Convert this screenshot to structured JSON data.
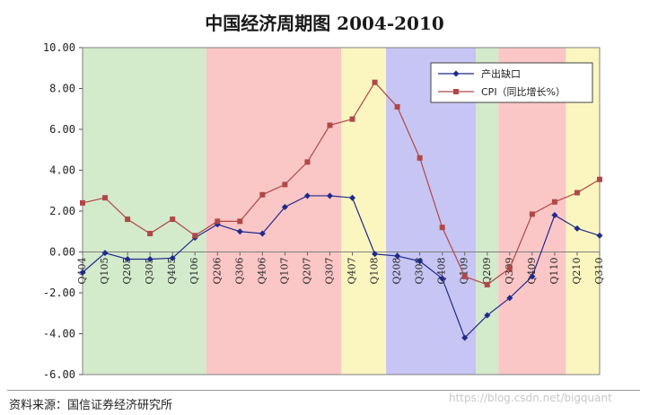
{
  "page": {
    "title": "中国经济周期图 2004-2010",
    "source": "资料来源：国信证券经济研究所",
    "watermark": "https://blog.csdn.net/bigquant"
  },
  "chart_data": {
    "type": "line",
    "title": "中国经济周期图 2004-2010",
    "xlabel": "",
    "ylabel": "",
    "ylim": [
      -6,
      10
    ],
    "yticks": [
      "10.00",
      "8.00",
      "6.00",
      "4.00",
      "2.00",
      "0.00",
      "-2.00",
      "-4.00",
      "-6.00"
    ],
    "categories": [
      "Q404",
      "Q105",
      "Q205",
      "Q305",
      "Q405",
      "Q106",
      "Q206",
      "Q306",
      "Q406",
      "Q107",
      "Q207",
      "Q307",
      "Q407",
      "Q108",
      "Q208",
      "Q308",
      "Q408",
      "Q109",
      "Q209",
      "Q309",
      "Q409",
      "Q110",
      "Q210",
      "Q310"
    ],
    "series": [
      {
        "name": "产出缺口",
        "color": "#1f2a8c",
        "marker": "diamond",
        "values": [
          -1.0,
          -0.05,
          -0.35,
          -0.35,
          -0.3,
          0.7,
          1.35,
          1.0,
          0.9,
          2.2,
          2.75,
          2.75,
          2.65,
          -0.1,
          -0.2,
          -0.45,
          -1.3,
          -4.2,
          -3.1,
          -2.25,
          -1.2,
          1.8,
          1.15,
          0.8
        ]
      },
      {
        "name": "CPI（同比增长%）",
        "color": "#b04848",
        "marker": "square",
        "values": [
          2.4,
          2.65,
          1.6,
          0.9,
          1.6,
          0.8,
          1.5,
          1.5,
          2.8,
          3.3,
          4.4,
          6.2,
          6.5,
          8.3,
          7.1,
          4.6,
          1.2,
          -1.2,
          -1.6,
          -0.8,
          1.85,
          2.45,
          2.9,
          3.55
        ]
      }
    ],
    "phases": [
      {
        "from": 0,
        "to": 5,
        "color": "#d3eacb"
      },
      {
        "from": 5,
        "to": 11,
        "color": "#fbc6c6"
      },
      {
        "from": 11,
        "to": 13,
        "color": "#fbf6c0"
      },
      {
        "from": 13,
        "to": 17,
        "color": "#c7c5f3"
      },
      {
        "from": 17,
        "to": 18,
        "color": "#d3eacb"
      },
      {
        "from": 18,
        "to": 21,
        "color": "#fbc6c6"
      },
      {
        "from": 21,
        "to": 23,
        "color": "#fbf6c0"
      }
    ],
    "grid": false,
    "legend_position": "top-right"
  }
}
